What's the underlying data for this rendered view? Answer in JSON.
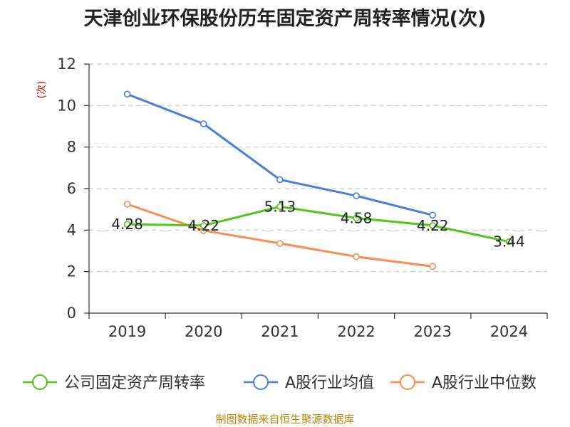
{
  "chart_data": {
    "type": "line",
    "title": "天津创业环保股份历年固定资产周转率情况(次)",
    "ylabel": "(次)",
    "categories": [
      "2019",
      "2020",
      "2021",
      "2022",
      "2023",
      "2024"
    ],
    "ylim": [
      0,
      12
    ],
    "yticks": [
      0,
      2,
      4,
      6,
      8,
      10,
      12
    ],
    "grid": true,
    "legend_position": "bottom",
    "series": [
      {
        "name": "公司固定资产周转率",
        "color": "#52c41a",
        "values": [
          4.28,
          4.22,
          5.13,
          4.58,
          4.22,
          3.44
        ],
        "labels": [
          "4.28",
          "4.22",
          "5.13",
          "4.58",
          "4.22",
          "3.44"
        ]
      },
      {
        "name": "A股行业均值",
        "color": "#4a7fdc",
        "values": [
          10.55,
          9.12,
          6.43,
          5.65,
          4.72,
          null
        ]
      },
      {
        "name": "A股行业中位数",
        "color": "#fa8c50",
        "values": [
          5.25,
          3.98,
          3.36,
          2.72,
          2.25,
          null
        ]
      }
    ]
  },
  "source": "制图数据来自恒生聚源数据库"
}
